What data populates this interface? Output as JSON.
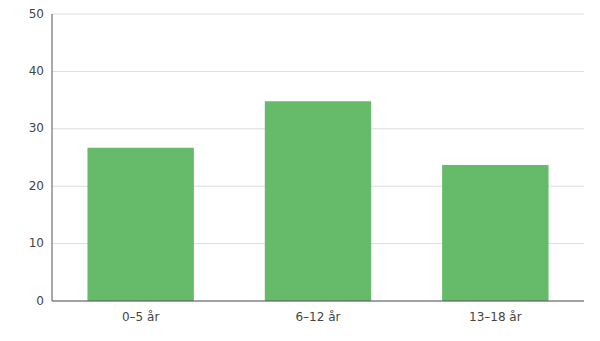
{
  "chart_data": {
    "type": "bar",
    "categories": [
      "0–5 år",
      "6–12 år",
      "13–18 år"
    ],
    "values": [
      26.7,
      34.8,
      23.7
    ],
    "color": "#66bb6a",
    "ylim": [
      0,
      50
    ],
    "yticks": [
      0,
      10,
      20,
      30,
      40,
      50
    ],
    "grid": true
  }
}
